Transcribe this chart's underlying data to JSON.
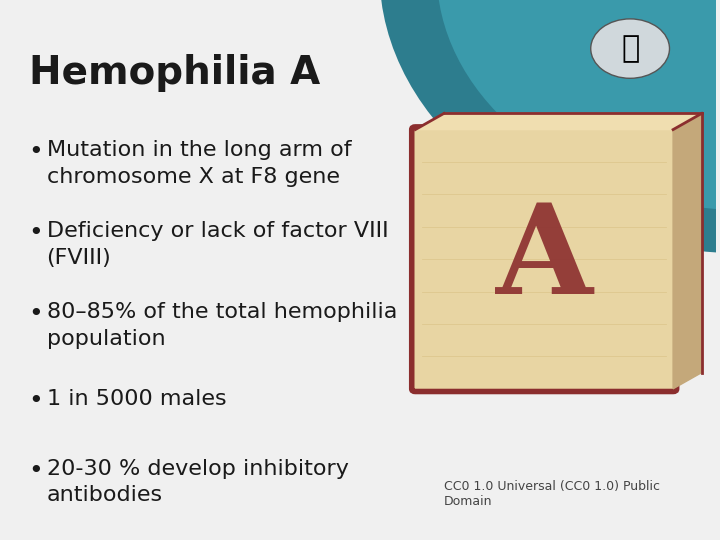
{
  "title": "Hemophilia A",
  "title_fontsize": 28,
  "title_color": "#1a1a1a",
  "background_color": "#f0f0f0",
  "bullet_points": [
    "Mutation in the long arm of\nchromosome X at F8 gene",
    "Deficiency or lack of factor VIII\n(FVIII)",
    "80–85% of the total hemophilia\npopulation",
    "1 in 5000 males",
    "20-30 % develop inhibitory\nantibodies"
  ],
  "bullet_fontsize": 16,
  "bullet_color": "#1a1a1a",
  "caption": "CC0 1.0 Universal (CC0 1.0) Public\nDomain",
  "caption_fontsize": 9,
  "caption_color": "#444444",
  "header_teal": "#2d7d8e",
  "header_arc_color": "#2d7d8e"
}
